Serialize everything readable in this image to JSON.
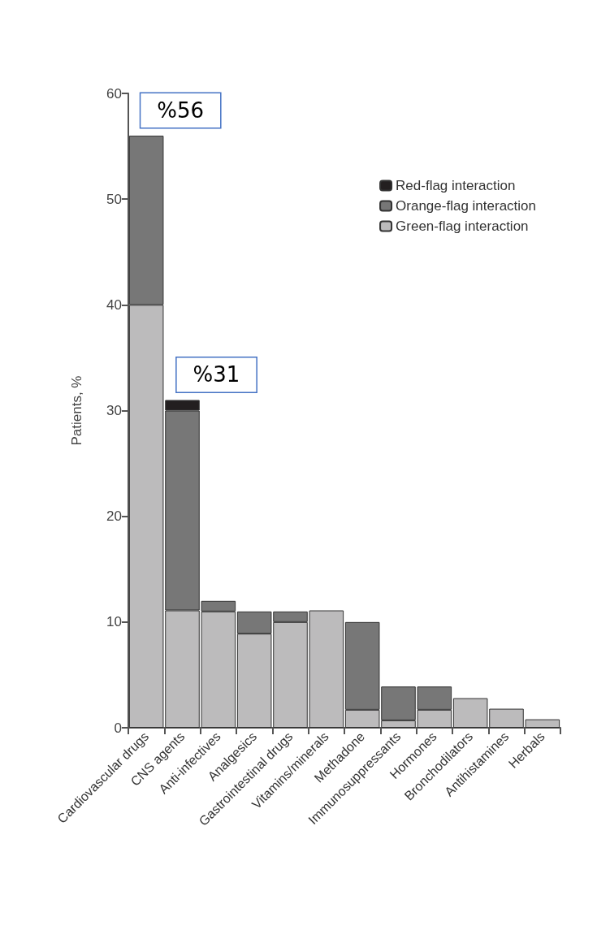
{
  "chart_data": {
    "type": "bar",
    "stacked": true,
    "ylabel": "Patients, %",
    "categories": [
      "Cardiovascular drugs",
      "CNS agents",
      "Anti-infectives",
      "Analgesics",
      "Gastrointestinal drugs",
      "Vitamins/minerals",
      "Methadone",
      "Immunosuppressants",
      "Hormones",
      "Bronchodilators",
      "Antihistamines",
      "Herbals"
    ],
    "series": [
      {
        "name": "Green-flag interaction",
        "color": "#bcbbbc",
        "values": [
          40,
          11.1,
          11,
          8.9,
          10,
          11.1,
          1.7,
          0.7,
          1.7,
          2.8,
          1.8,
          0.8
        ]
      },
      {
        "name": "Orange-flag interaction",
        "color": "#777777",
        "values": [
          16,
          18.9,
          1,
          2.1,
          1,
          null,
          8.3,
          3.2,
          2.2,
          null,
          null,
          null
        ]
      },
      {
        "name": "Red-flag interaction",
        "color": "#231f20",
        "values": [
          null,
          1,
          null,
          null,
          null,
          null,
          null,
          null,
          null,
          null,
          null,
          null
        ]
      }
    ],
    "ylim": [
      0,
      60
    ],
    "yticks": [
      0,
      10,
      20,
      30,
      40,
      50,
      60
    ],
    "grid": false,
    "legend": "top right",
    "annotations": [
      {
        "text": "%56",
        "x": "Cardiovascular drugs",
        "y": 56
      },
      {
        "text": "%31",
        "x": "CNS agents",
        "y": 31
      }
    ]
  }
}
